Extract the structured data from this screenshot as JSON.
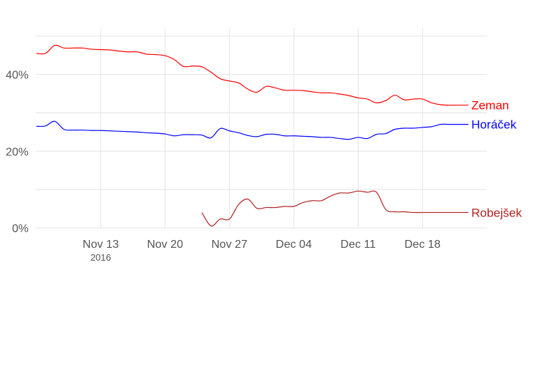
{
  "chart_data": {
    "type": "line",
    "x_type": "date",
    "xlim": [
      "2016-11-06",
      "2016-12-25"
    ],
    "ylim": [
      0,
      52
    ],
    "y_tick_values": [
      0,
      20,
      40
    ],
    "y_tick_labels": [
      "0%",
      "20%",
      "40%"
    ],
    "x_ticks": [
      {
        "date": "2016-11-13",
        "label": "Nov 13",
        "sublabel": "2016"
      },
      {
        "date": "2016-11-20",
        "label": "Nov 20",
        "sublabel": ""
      },
      {
        "date": "2016-11-27",
        "label": "Nov 27",
        "sublabel": ""
      },
      {
        "date": "2016-12-04",
        "label": "Dec 04",
        "sublabel": ""
      },
      {
        "date": "2016-12-11",
        "label": "Dec 11",
        "sublabel": ""
      },
      {
        "date": "2016-12-18",
        "label": "Dec 18",
        "sublabel": ""
      }
    ],
    "grid": true,
    "legend": "direct labels at right end of lines",
    "series": [
      {
        "name": "Zeman",
        "color": "#ff0000",
        "points": [
          [
            "2016-11-06",
            45.5
          ],
          [
            "2016-11-07",
            45.5
          ],
          [
            "2016-11-08",
            47.6
          ],
          [
            "2016-11-09",
            46.9
          ],
          [
            "2016-11-10",
            46.9
          ],
          [
            "2016-11-11",
            46.9
          ],
          [
            "2016-11-12",
            46.6
          ],
          [
            "2016-11-13",
            46.5
          ],
          [
            "2016-11-14",
            46.4
          ],
          [
            "2016-11-15",
            46.1
          ],
          [
            "2016-11-16",
            45.9
          ],
          [
            "2016-11-17",
            45.9
          ],
          [
            "2016-11-18",
            45.3
          ],
          [
            "2016-11-19",
            45.2
          ],
          [
            "2016-11-20",
            44.9
          ],
          [
            "2016-11-21",
            43.9
          ],
          [
            "2016-11-22",
            42.1
          ],
          [
            "2016-11-23",
            42.2
          ],
          [
            "2016-11-24",
            42.0
          ],
          [
            "2016-11-25",
            40.6
          ],
          [
            "2016-11-26",
            38.9
          ],
          [
            "2016-11-27",
            38.3
          ],
          [
            "2016-11-28",
            37.8
          ],
          [
            "2016-11-29",
            36.2
          ],
          [
            "2016-11-30",
            35.4
          ],
          [
            "2016-12-01",
            36.9
          ],
          [
            "2016-12-02",
            36.5
          ],
          [
            "2016-12-03",
            35.9
          ],
          [
            "2016-12-04",
            35.9
          ],
          [
            "2016-12-05",
            35.8
          ],
          [
            "2016-12-06",
            35.5
          ],
          [
            "2016-12-07",
            35.2
          ],
          [
            "2016-12-08",
            35.2
          ],
          [
            "2016-12-09",
            34.9
          ],
          [
            "2016-12-10",
            34.5
          ],
          [
            "2016-12-11",
            33.9
          ],
          [
            "2016-12-12",
            33.6
          ],
          [
            "2016-12-13",
            32.6
          ],
          [
            "2016-12-14",
            33.2
          ],
          [
            "2016-12-15",
            34.6
          ],
          [
            "2016-12-16",
            33.4
          ],
          [
            "2016-12-17",
            33.6
          ],
          [
            "2016-12-18",
            33.6
          ],
          [
            "2016-12-19",
            32.6
          ],
          [
            "2016-12-20",
            32.1
          ],
          [
            "2016-12-21",
            32.0
          ],
          [
            "2016-12-22",
            32.0
          ],
          [
            "2016-12-23",
            32.0
          ]
        ]
      },
      {
        "name": "Horáček",
        "color": "#0000ff",
        "points": [
          [
            "2016-11-06",
            26.5
          ],
          [
            "2016-11-07",
            26.6
          ],
          [
            "2016-11-08",
            27.8
          ],
          [
            "2016-11-09",
            25.7
          ],
          [
            "2016-11-10",
            25.5
          ],
          [
            "2016-11-11",
            25.5
          ],
          [
            "2016-11-12",
            25.4
          ],
          [
            "2016-11-13",
            25.4
          ],
          [
            "2016-11-14",
            25.3
          ],
          [
            "2016-11-15",
            25.2
          ],
          [
            "2016-11-16",
            25.1
          ],
          [
            "2016-11-17",
            25.0
          ],
          [
            "2016-11-18",
            24.8
          ],
          [
            "2016-11-19",
            24.7
          ],
          [
            "2016-11-20",
            24.5
          ],
          [
            "2016-11-21",
            24.0
          ],
          [
            "2016-11-22",
            24.3
          ],
          [
            "2016-11-23",
            24.3
          ],
          [
            "2016-11-24",
            24.2
          ],
          [
            "2016-11-25",
            23.5
          ],
          [
            "2016-11-26",
            25.9
          ],
          [
            "2016-11-27",
            25.3
          ],
          [
            "2016-11-28",
            24.8
          ],
          [
            "2016-11-29",
            24.1
          ],
          [
            "2016-11-30",
            23.8
          ],
          [
            "2016-12-01",
            24.4
          ],
          [
            "2016-12-02",
            24.4
          ],
          [
            "2016-12-03",
            24.0
          ],
          [
            "2016-12-04",
            24.0
          ],
          [
            "2016-12-05",
            23.9
          ],
          [
            "2016-12-06",
            23.8
          ],
          [
            "2016-12-07",
            23.6
          ],
          [
            "2016-12-08",
            23.6
          ],
          [
            "2016-12-09",
            23.3
          ],
          [
            "2016-12-10",
            23.1
          ],
          [
            "2016-12-11",
            23.6
          ],
          [
            "2016-12-12",
            23.3
          ],
          [
            "2016-12-13",
            24.4
          ],
          [
            "2016-12-14",
            24.6
          ],
          [
            "2016-12-15",
            25.7
          ],
          [
            "2016-12-16",
            26.0
          ],
          [
            "2016-12-17",
            26.0
          ],
          [
            "2016-12-18",
            26.2
          ],
          [
            "2016-12-19",
            26.4
          ],
          [
            "2016-12-20",
            27.0
          ],
          [
            "2016-12-21",
            27.0
          ],
          [
            "2016-12-22",
            27.0
          ],
          [
            "2016-12-23",
            27.0
          ]
        ]
      },
      {
        "name": "Robejšek",
        "color": "#b22222",
        "points": [
          [
            "2016-11-24",
            4.0
          ],
          [
            "2016-11-25",
            0.5
          ],
          [
            "2016-11-26",
            2.3
          ],
          [
            "2016-11-27",
            2.3
          ],
          [
            "2016-11-28",
            6.1
          ],
          [
            "2016-11-29",
            7.5
          ],
          [
            "2016-11-30",
            5.1
          ],
          [
            "2016-12-01",
            5.3
          ],
          [
            "2016-12-02",
            5.3
          ],
          [
            "2016-12-03",
            5.6
          ],
          [
            "2016-12-04",
            5.6
          ],
          [
            "2016-12-05",
            6.6
          ],
          [
            "2016-12-06",
            7.1
          ],
          [
            "2016-12-07",
            7.1
          ],
          [
            "2016-12-08",
            8.3
          ],
          [
            "2016-12-09",
            9.1
          ],
          [
            "2016-12-10",
            9.1
          ],
          [
            "2016-12-11",
            9.6
          ],
          [
            "2016-12-12",
            9.3
          ],
          [
            "2016-12-13",
            9.3
          ],
          [
            "2016-12-14",
            4.8
          ],
          [
            "2016-12-15",
            4.2
          ],
          [
            "2016-12-16",
            4.2
          ],
          [
            "2016-12-17",
            4.0
          ],
          [
            "2016-12-18",
            4.0
          ],
          [
            "2016-12-19",
            4.0
          ],
          [
            "2016-12-20",
            4.0
          ],
          [
            "2016-12-21",
            4.0
          ],
          [
            "2016-12-22",
            4.0
          ],
          [
            "2016-12-23",
            4.0
          ]
        ]
      }
    ]
  }
}
